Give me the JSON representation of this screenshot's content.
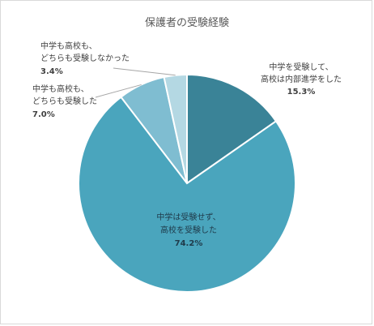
{
  "chart_data": {
    "type": "pie",
    "title": "保護者の受験経験",
    "legend": "none",
    "slices": [
      {
        "line1": "中学を受験して、",
        "line2": "高校は内部進学をした",
        "value": 15.3,
        "pct_label": "15.3%",
        "color": "#3a8397"
      },
      {
        "line1": "中学は受験せず、",
        "line2": "高校を受験した",
        "value": 74.2,
        "pct_label": "74.2%",
        "color": "#4aa5bd"
      },
      {
        "line1": "中学も高校も、",
        "line2": "どちらも受験した",
        "value": 7.0,
        "pct_label": "7.0%",
        "color": "#7fbdd1"
      },
      {
        "line1": "中学も高校も、",
        "line2": "どちらも受験しなかった",
        "value": 3.4,
        "pct_label": "3.4%",
        "color": "#b4d8e3"
      }
    ]
  }
}
